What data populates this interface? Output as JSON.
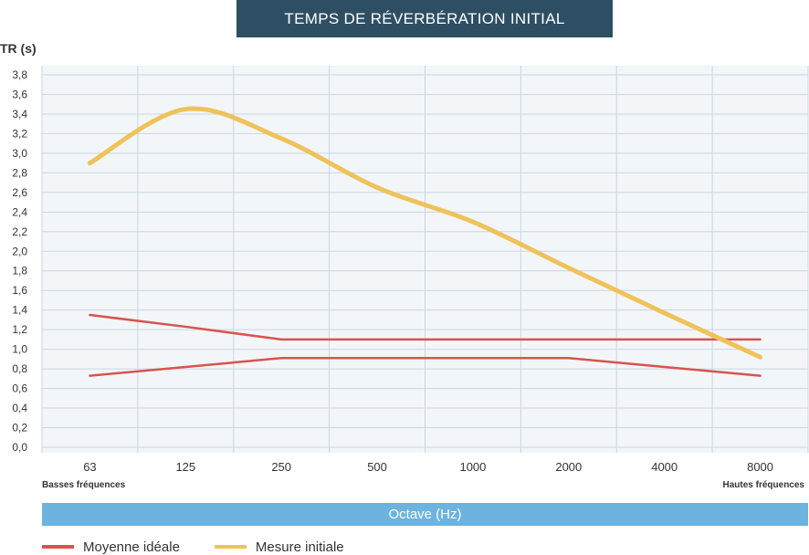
{
  "colors": {
    "title_bg": "#2e4f63",
    "grid": "#c9d6df",
    "plot_bg": "#f2f6f9",
    "ideal": "#d9534f",
    "measure": "#efc25a",
    "octave_bg": "#6db3df"
  },
  "chart_data": {
    "type": "line",
    "title": "TEMPS DE RÉVERBÉRATION INITIAL",
    "ylabel": "TR (s)",
    "xlabel": "Octave (Hz)",
    "categories": [
      "63",
      "125",
      "250",
      "500",
      "1000",
      "2000",
      "4000",
      "8000"
    ],
    "y_ticks": [
      "0,0",
      "0,2",
      "0,4",
      "0,6",
      "0,8",
      "1,0",
      "1,2",
      "1,4",
      "1,6",
      "1,8",
      "2,0",
      "2,2",
      "2,4",
      "2,6",
      "2,8",
      "3,0",
      "3,2",
      "3,4",
      "3,6",
      "3,8"
    ],
    "ylim": [
      0,
      3.8
    ],
    "x_note_left": "Basses fréquences",
    "x_note_right": "Hautes fréquences",
    "series": [
      {
        "name": "Moyenne idéale (haut)",
        "legend": false,
        "values": [
          1.35,
          1.23,
          1.1,
          1.1,
          1.1,
          1.1,
          1.1,
          1.1
        ]
      },
      {
        "name": "Moyenne idéale (bas)",
        "legend": false,
        "values": [
          0.73,
          0.82,
          0.91,
          0.91,
          0.91,
          0.91,
          0.82,
          0.73
        ]
      },
      {
        "name": "Mesure initiale",
        "legend": false,
        "values": [
          2.9,
          3.45,
          3.15,
          2.65,
          2.3,
          1.83,
          1.37,
          0.92
        ]
      }
    ],
    "legend": [
      {
        "label": "Moyenne idéale",
        "color": "#d9534f"
      },
      {
        "label": "Mesure initiale",
        "color": "#efc25a"
      }
    ]
  }
}
